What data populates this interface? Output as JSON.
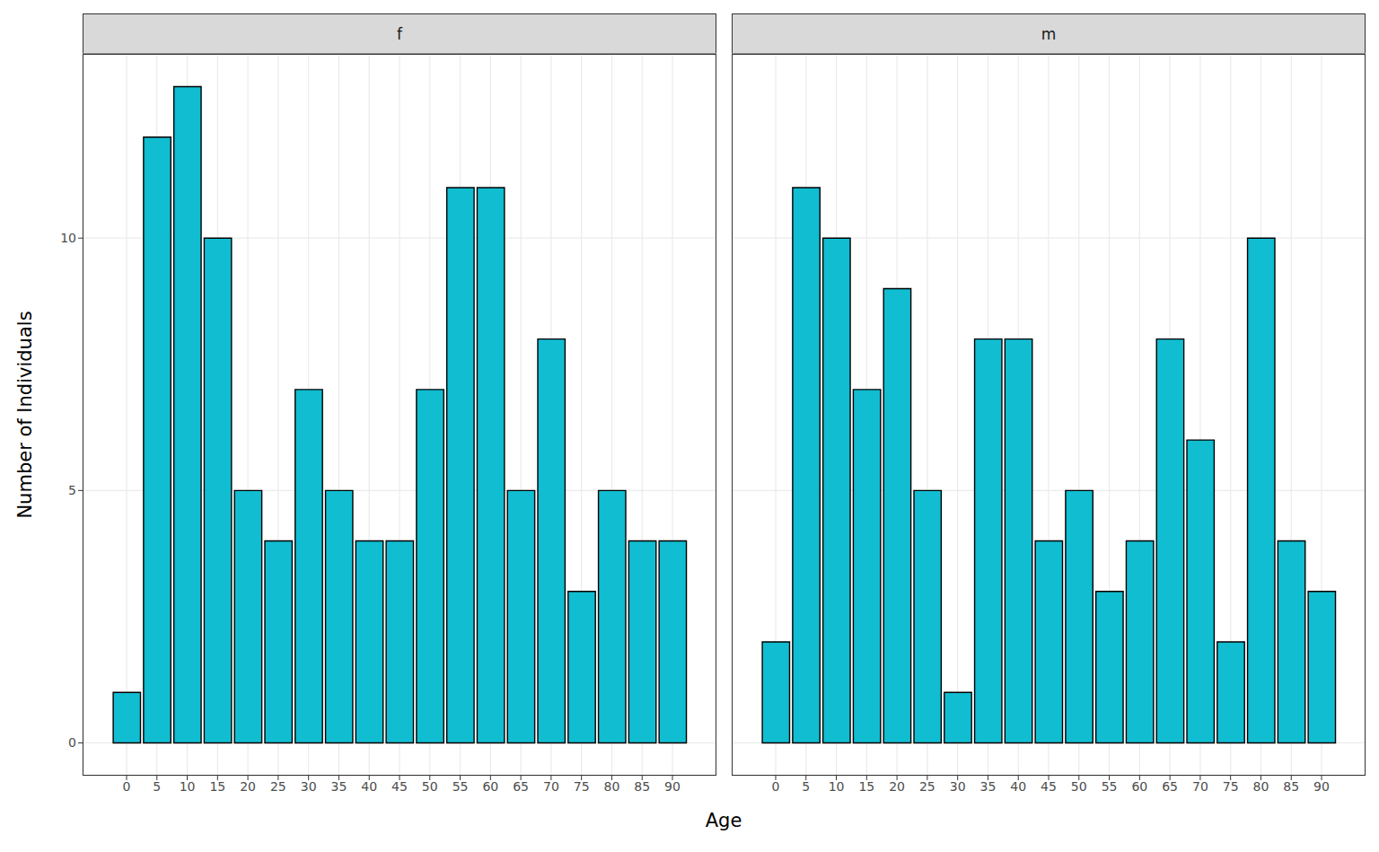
{
  "chart_data": {
    "type": "histogram",
    "x_label": "Age",
    "y_label": "Number of Individuals",
    "color": "#11bdd1",
    "grid": true,
    "bins": [
      -2.5,
      2.5,
      7.5,
      12.5,
      17.5,
      22.5,
      27.5,
      32.5,
      37.5,
      42.5,
      47.5,
      52.5,
      57.5,
      62.5,
      67.5,
      72.5,
      77.5,
      82.5,
      87.5,
      92.5
    ],
    "xlim": [
      -7.25,
      97.25
    ],
    "xticks": [
      0,
      5,
      10,
      15,
      20,
      25,
      30,
      35,
      40,
      45,
      50,
      55,
      60,
      65,
      70,
      75,
      80,
      85,
      90
    ],
    "ylim": [
      -0.65,
      13.65
    ],
    "yticks": [
      0,
      5,
      10
    ],
    "panels": [
      {
        "title": "f",
        "values": [
          1,
          12,
          13,
          10,
          5,
          4,
          7,
          5,
          4,
          4,
          7,
          11,
          11,
          5,
          8,
          3,
          5,
          4,
          4
        ]
      },
      {
        "title": "m",
        "values": [
          2,
          11,
          10,
          7,
          9,
          5,
          1,
          8,
          8,
          4,
          5,
          3,
          4,
          8,
          6,
          2,
          10,
          4,
          3
        ]
      }
    ]
  }
}
